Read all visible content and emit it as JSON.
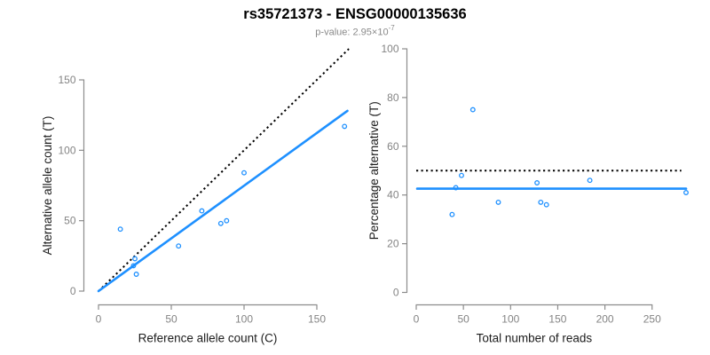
{
  "header": {
    "title": "rs35721373 - ENSG00000135636",
    "pvalue_prefix": "p-value: 2.95×10",
    "pvalue_exponent": "-7"
  },
  "colors": {
    "point_blue": "#1E90FF",
    "line_blue": "#1E90FF",
    "dotted_black": "#000000",
    "axis_gray": "#8c8c8c",
    "tick_label_gray": "#848484",
    "axis_title_color": "#1c1c1c",
    "subtitle_gray": "#8a8a8a",
    "background": "#ffffff"
  },
  "chart_data": [
    {
      "type": "scatter",
      "name": "allele-count-scatter",
      "xlabel": "Reference allele count (C)",
      "ylabel": "Alternative allele count (T)",
      "xticks": [
        0,
        50,
        100,
        150
      ],
      "yticks": [
        0,
        50,
        100,
        150
      ],
      "xlim": [
        0,
        172
      ],
      "ylim": [
        0,
        172
      ],
      "grid": false,
      "legend": false,
      "points": [
        [
          15,
          44
        ],
        [
          24,
          18
        ],
        [
          25,
          23
        ],
        [
          26,
          12
        ],
        [
          55,
          32
        ],
        [
          71,
          57
        ],
        [
          84,
          48
        ],
        [
          88,
          50
        ],
        [
          100,
          84
        ],
        [
          169,
          117
        ]
      ],
      "lines": [
        {
          "name": "identity-line",
          "style": "dotted",
          "color": "#000000",
          "from": [
            0,
            0
          ],
          "to": [
            172,
            172
          ]
        },
        {
          "name": "fit-line",
          "style": "solid",
          "color": "#1E90FF",
          "from": [
            0,
            0
          ],
          "to": [
            171,
            128
          ]
        }
      ]
    },
    {
      "type": "scatter",
      "name": "percentage-scatter",
      "xlabel": "Total number of reads",
      "ylabel": "Percentage alternative (T)",
      "xticks": [
        0,
        50,
        100,
        150,
        200,
        250
      ],
      "yticks": [
        0,
        20,
        40,
        60,
        80,
        100
      ],
      "xlim": [
        0,
        287
      ],
      "ylim": [
        0,
        100
      ],
      "grid": false,
      "legend": false,
      "points": [
        [
          38,
          32
        ],
        [
          42,
          43
        ],
        [
          48,
          48
        ],
        [
          60,
          75
        ],
        [
          87,
          37
        ],
        [
          128,
          45
        ],
        [
          132,
          37
        ],
        [
          138,
          36
        ],
        [
          184,
          46
        ],
        [
          286,
          41
        ]
      ],
      "lines": [
        {
          "name": "expected-percentage-line",
          "style": "dotted",
          "color": "#000000",
          "from": [
            0,
            50
          ],
          "to": [
            281,
            50
          ]
        },
        {
          "name": "mean-percentage-line",
          "style": "solid",
          "color": "#1E90FF",
          "from": [
            1,
            42.6
          ],
          "to": [
            286,
            42.6
          ]
        }
      ]
    }
  ]
}
